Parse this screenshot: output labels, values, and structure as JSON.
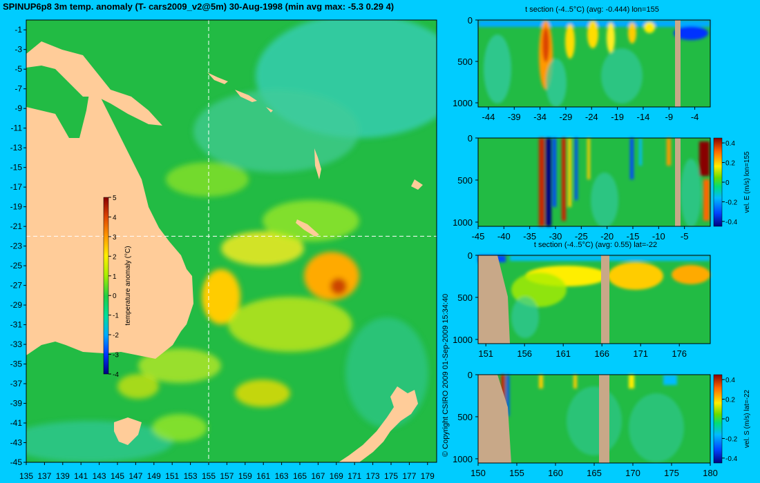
{
  "title": "SPINUP6p8 3m temp. anomaly (T- cars2009_v2@5m) 30-Aug-1998 (min avg max: -5.3 0.29 4)",
  "copyright": "© Copyright CSIRO 2009   01-Sep-2009 15:34:40",
  "colors": {
    "background": "#00ccff",
    "land": "#ffcc99",
    "section_land": "#c8a888",
    "ocean_base": "#22bb44",
    "crosshair": "#ffffff"
  },
  "chart_data": [
    {
      "type": "heatmap",
      "name": "map",
      "title": "SPINUP6p8 3m temp. anomaly (T- cars2009_v2@5m) 30-Aug-1998 (min avg max: -5.3 0.29 4)",
      "xlim": [
        135,
        180
      ],
      "ylim": [
        -45,
        0
      ],
      "xticks": [
        "135",
        "137",
        "139",
        "141",
        "143",
        "145",
        "147",
        "149",
        "151",
        "153",
        "155",
        "157",
        "159",
        "161",
        "163",
        "165",
        "167",
        "169",
        "171",
        "173",
        "175",
        "177",
        "179"
      ],
      "yticks": [
        "-1",
        "-3",
        "-5",
        "-7",
        "-9",
        "-11",
        "-13",
        "-15",
        "-17",
        "-19",
        "-21",
        "-23",
        "-25",
        "-27",
        "-29",
        "-31",
        "-33",
        "-35",
        "-37",
        "-39",
        "-41",
        "-43",
        "-45"
      ],
      "crosshair": {
        "lon": 155,
        "lat": -22
      },
      "colorbar": {
        "label": "temperature anomaly (°C)",
        "ticks": [
          "5",
          "4",
          "3",
          "2",
          "1",
          "0",
          "-1",
          "-2",
          "-3",
          "-4"
        ],
        "range": [
          -4,
          5
        ]
      }
    },
    {
      "type": "heatmap",
      "name": "t-section-lon155",
      "title": "t section (-4..5°C) (avg: -0.444) lon=155",
      "xlim": [
        -46,
        -1
      ],
      "ylim": [
        1050,
        0
      ],
      "xticks": [
        "-44",
        "-39",
        "-34",
        "-29",
        "-24",
        "-19",
        "-14",
        "-9",
        "-4"
      ],
      "yticks": [
        "0",
        "500",
        "1000"
      ]
    },
    {
      "type": "heatmap",
      "name": "vel-e-section-lon155",
      "title": "",
      "xlim": [
        -45,
        0
      ],
      "ylim": [
        1050,
        0
      ],
      "xticks": [
        "-45",
        "-40",
        "-35",
        "-30",
        "-25",
        "-20",
        "-15",
        "-10",
        "-5"
      ],
      "yticks": [
        "0",
        "500",
        "1000"
      ],
      "colorbar": {
        "label": "vel. E (m/s) lon=155",
        "ticks": [
          "0.4",
          "0.2",
          "0",
          "-0.2",
          "-0.4"
        ],
        "range": [
          -0.45,
          0.45
        ]
      }
    },
    {
      "type": "heatmap",
      "name": "t-section-lat-22",
      "title": "t section (-4..5°C) (avg: 0.55) lat=-22",
      "xlim": [
        150,
        180
      ],
      "ylim": [
        1050,
        0
      ],
      "xticks": [
        "151",
        "156",
        "161",
        "166",
        "171",
        "176"
      ],
      "yticks": [
        "0",
        "500",
        "1000"
      ]
    },
    {
      "type": "heatmap",
      "name": "vel-s-section-lat-22",
      "title": "",
      "xlim": [
        150,
        180
      ],
      "ylim": [
        1050,
        0
      ],
      "xticks": [
        "150",
        "155",
        "160",
        "165",
        "170",
        "175",
        "180"
      ],
      "yticks": [
        "0",
        "500",
        "1000"
      ],
      "colorbar": {
        "label": "vel. S (m/s) lat=-22",
        "ticks": [
          "0.4",
          "0.2",
          "0",
          "-0.2",
          "-0.4"
        ],
        "range": [
          -0.45,
          0.45
        ]
      }
    }
  ]
}
